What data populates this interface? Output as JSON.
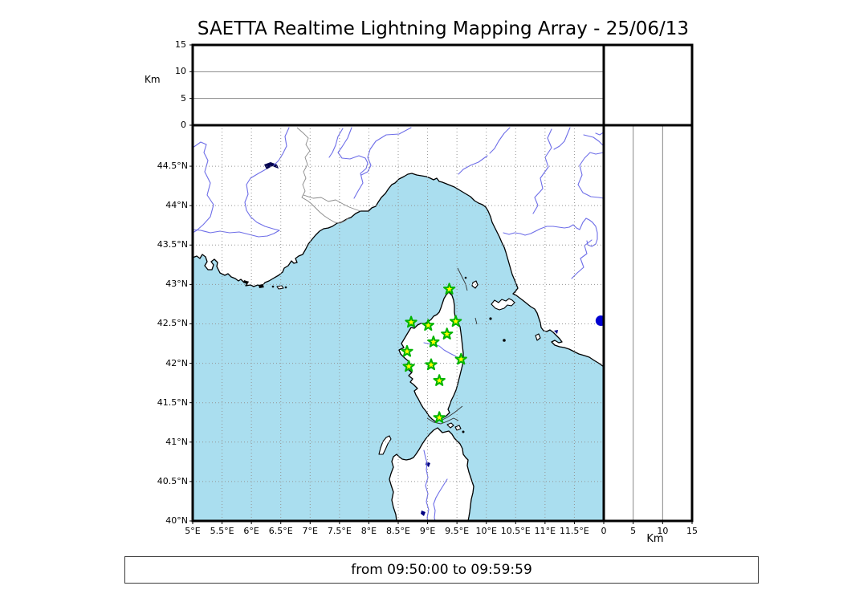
{
  "title": "SAETTA Realtime Lightning Mapping Array - 25/06/13",
  "status_bar": {
    "text": "from 09:50:00 to 09:59:59"
  },
  "altitude_axis": {
    "unit_label": "Km",
    "ticks": [
      {
        "value": 0,
        "label": "0"
      },
      {
        "value": 5,
        "label": "5"
      },
      {
        "value": 10,
        "label": "10"
      },
      {
        "value": 15,
        "label": "15"
      }
    ],
    "max": 15
  },
  "map": {
    "lon_ticks": [
      {
        "value": 5,
        "label": "5°E"
      },
      {
        "value": 5.5,
        "label": "5.5°E"
      },
      {
        "value": 6,
        "label": "6°E"
      },
      {
        "value": 6.5,
        "label": "6.5°E"
      },
      {
        "value": 7,
        "label": "7°E"
      },
      {
        "value": 7.5,
        "label": "7.5°E"
      },
      {
        "value": 8,
        "label": "8°E"
      },
      {
        "value": 8.5,
        "label": "8.5°E"
      },
      {
        "value": 9,
        "label": "9°E"
      },
      {
        "value": 9.5,
        "label": "9.5°E"
      },
      {
        "value": 10,
        "label": "10°E"
      },
      {
        "value": 10.5,
        "label": "10.5°E"
      },
      {
        "value": 11,
        "label": "11°E"
      },
      {
        "value": 11.5,
        "label": "11.5°E"
      }
    ],
    "lat_ticks": [
      {
        "value": 40,
        "label": "40°N"
      },
      {
        "value": 40.5,
        "label": "40.5°N"
      },
      {
        "value": 41,
        "label": "41°N"
      },
      {
        "value": 41.5,
        "label": "41.5°N"
      },
      {
        "value": 42,
        "label": "42°N"
      },
      {
        "value": 42.5,
        "label": "42.5°N"
      },
      {
        "value": 43,
        "label": "43°N"
      },
      {
        "value": 43.5,
        "label": "43.5°N"
      },
      {
        "value": 44,
        "label": "44°N"
      },
      {
        "value": 44.5,
        "label": "44.5°N"
      }
    ]
  },
  "stations": [
    {
      "lon": 9.37,
      "lat": 42.94
    },
    {
      "lon": 8.72,
      "lat": 42.52
    },
    {
      "lon": 9.01,
      "lat": 42.48
    },
    {
      "lon": 9.48,
      "lat": 42.53
    },
    {
      "lon": 9.33,
      "lat": 42.37
    },
    {
      "lon": 9.1,
      "lat": 42.27
    },
    {
      "lon": 8.65,
      "lat": 42.15
    },
    {
      "lon": 9.57,
      "lat": 42.05
    },
    {
      "lon": 9.06,
      "lat": 41.98
    },
    {
      "lon": 8.68,
      "lat": 41.96
    },
    {
      "lon": 9.2,
      "lat": 41.78
    },
    {
      "lon": 9.2,
      "lat": 41.31
    }
  ],
  "event_marker": {
    "lon": 11.95,
    "lat": 42.54
  },
  "colors": {
    "sea": "#aadeef",
    "land": "#ffffff",
    "coastline": "#000000",
    "river": "#6e6ee8",
    "border_line": "#8a8a8a",
    "grid_line": "#949494",
    "panel_grid": "#888888",
    "station_fill": "#ffff00",
    "station_edge": "#00b400",
    "event_fill": "#0000d0",
    "lake": "#000080"
  }
}
